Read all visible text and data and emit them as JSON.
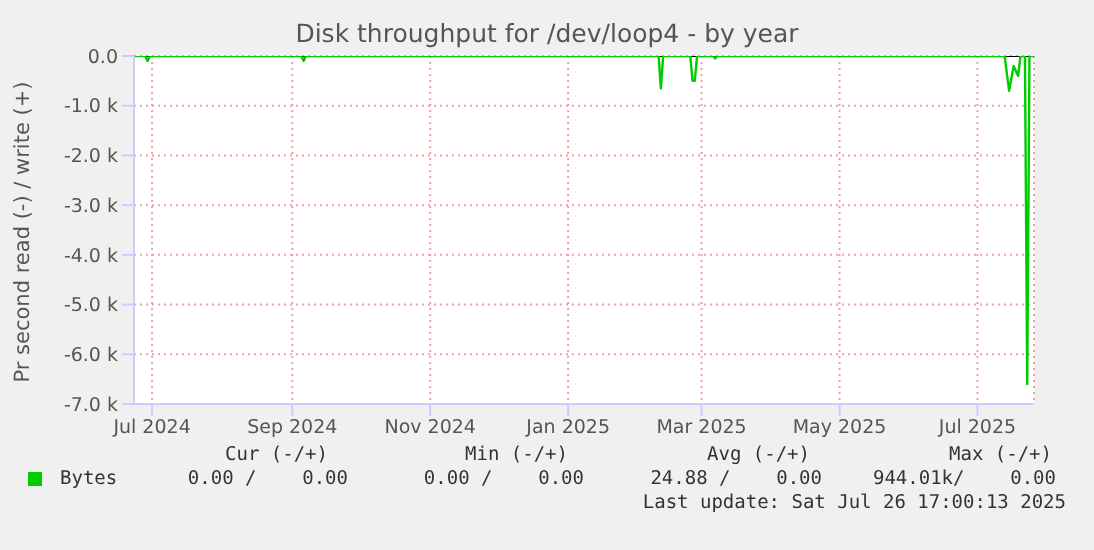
{
  "chart_data": {
    "type": "line",
    "title": "Disk throughput for /dev/loop4 - by year",
    "ylabel": "Pr second read (-) / write (+)",
    "x": [
      "2024-06-23",
      "2024-06-28",
      "2024-06-29",
      "2024-06-30",
      "2024-09-05",
      "2024-09-06",
      "2024-09-07",
      "2025-02-10",
      "2025-02-11",
      "2025-02-12",
      "2025-02-24",
      "2025-02-25",
      "2025-02-26",
      "2025-02-27",
      "2025-03-06",
      "2025-03-07",
      "2025-03-08",
      "2025-07-13",
      "2025-07-15",
      "2025-07-17",
      "2025-07-19",
      "2025-07-20",
      "2025-07-22",
      "2025-07-23",
      "2025-07-24",
      "2025-07-26"
    ],
    "series": [
      {
        "name": "Bytes",
        "color": "#00cc00",
        "values": [
          0,
          0,
          -100,
          0,
          0,
          -100,
          0,
          0,
          -650,
          0,
          0,
          -500,
          -500,
          0,
          0,
          -50,
          0,
          0,
          -700,
          -200,
          -400,
          0,
          0,
          -6600,
          0,
          0
        ]
      }
    ],
    "xlim": [
      "2024-06-23",
      "2025-07-26"
    ],
    "xticks": [
      {
        "value": "2024-07-01",
        "label": "Jul 2024"
      },
      {
        "value": "2024-09-01",
        "label": "Sep 2024"
      },
      {
        "value": "2024-11-01",
        "label": "Nov 2024"
      },
      {
        "value": "2025-01-01",
        "label": "Jan 2025"
      },
      {
        "value": "2025-03-01",
        "label": "Mar 2025"
      },
      {
        "value": "2025-05-01",
        "label": "May 2025"
      },
      {
        "value": "2025-07-01",
        "label": "Jul 2025"
      }
    ],
    "ylim": [
      -7000,
      0
    ],
    "yticks": [
      {
        "value": 0,
        "label": "0.0"
      },
      {
        "value": -1000,
        "label": "-1.0 k"
      },
      {
        "value": -2000,
        "label": "-2.0 k"
      },
      {
        "value": -3000,
        "label": "-3.0 k"
      },
      {
        "value": -4000,
        "label": "-4.0 k"
      },
      {
        "value": -5000,
        "label": "-5.0 k"
      },
      {
        "value": -6000,
        "label": "-6.0 k"
      },
      {
        "value": -7000,
        "label": "-7.0 k"
      }
    ],
    "grid": true,
    "legend": "bottom",
    "annotations": [
      "Cur (-/+)",
      "Min (-/+)",
      "Avg (-/+)",
      "Max (-/+)",
      "0.00 /    0.00",
      "0.00 /    0.00",
      "24.88 /    0.00",
      "944.01k/    0.00",
      "Last update: Sat Jul 26 17:00:13 2025"
    ]
  }
}
